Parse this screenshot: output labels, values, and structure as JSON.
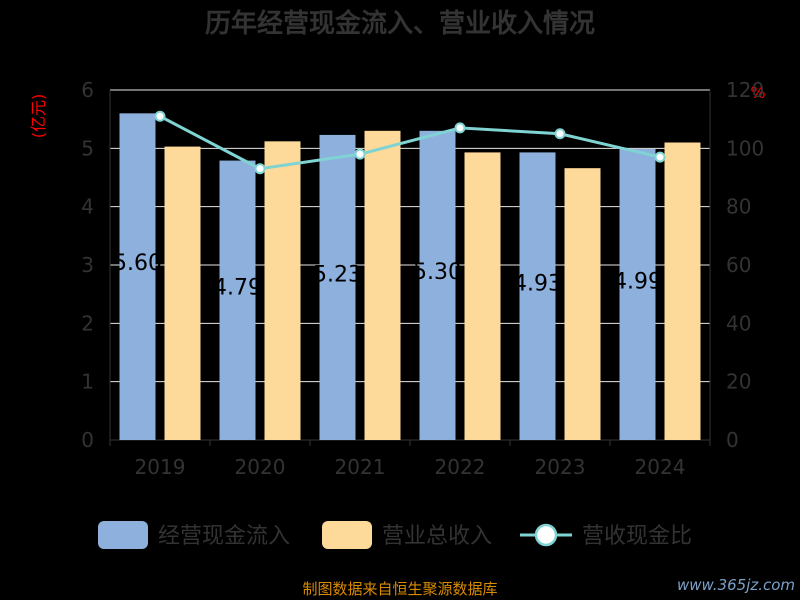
{
  "chart_data": {
    "type": "bar",
    "title": "历年经营现金流入、营业收入情况",
    "categories": [
      "2019",
      "2020",
      "2021",
      "2022",
      "2023",
      "2024"
    ],
    "ylabel_left": "(亿元)",
    "ylabel_right": "%",
    "ylim_left": [
      0,
      6
    ],
    "ylim_right": [
      0,
      120
    ],
    "yticks_left": [
      "0",
      "1",
      "2",
      "3",
      "4",
      "5",
      "6"
    ],
    "yticks_right": [
      "0",
      "20",
      "40",
      "60",
      "80",
      "100",
      "120"
    ],
    "series": [
      {
        "name": "经营现金流入",
        "kind": "bar",
        "axis": "left",
        "color": "#8eb0dd",
        "values": [
          5.6,
          4.79,
          5.23,
          5.3,
          4.93,
          4.99
        ],
        "labels": [
          "5.60",
          "4.79",
          "5.23",
          "5.30",
          "4.93",
          "4.99"
        ]
      },
      {
        "name": "营业总收入",
        "kind": "bar",
        "axis": "left",
        "color": "#fdd99a",
        "values": [
          5.03,
          5.12,
          5.3,
          4.93,
          4.66,
          5.1
        ]
      },
      {
        "name": "营收现金比",
        "kind": "line",
        "axis": "right",
        "color": "#7fd3d3",
        "values": [
          111,
          93,
          98,
          107,
          105,
          97
        ]
      }
    ],
    "grid": true,
    "legend": "bottom"
  },
  "footer": {
    "source": "制图数据来自恒生聚源数据库",
    "watermark": "www.365jz.com"
  }
}
